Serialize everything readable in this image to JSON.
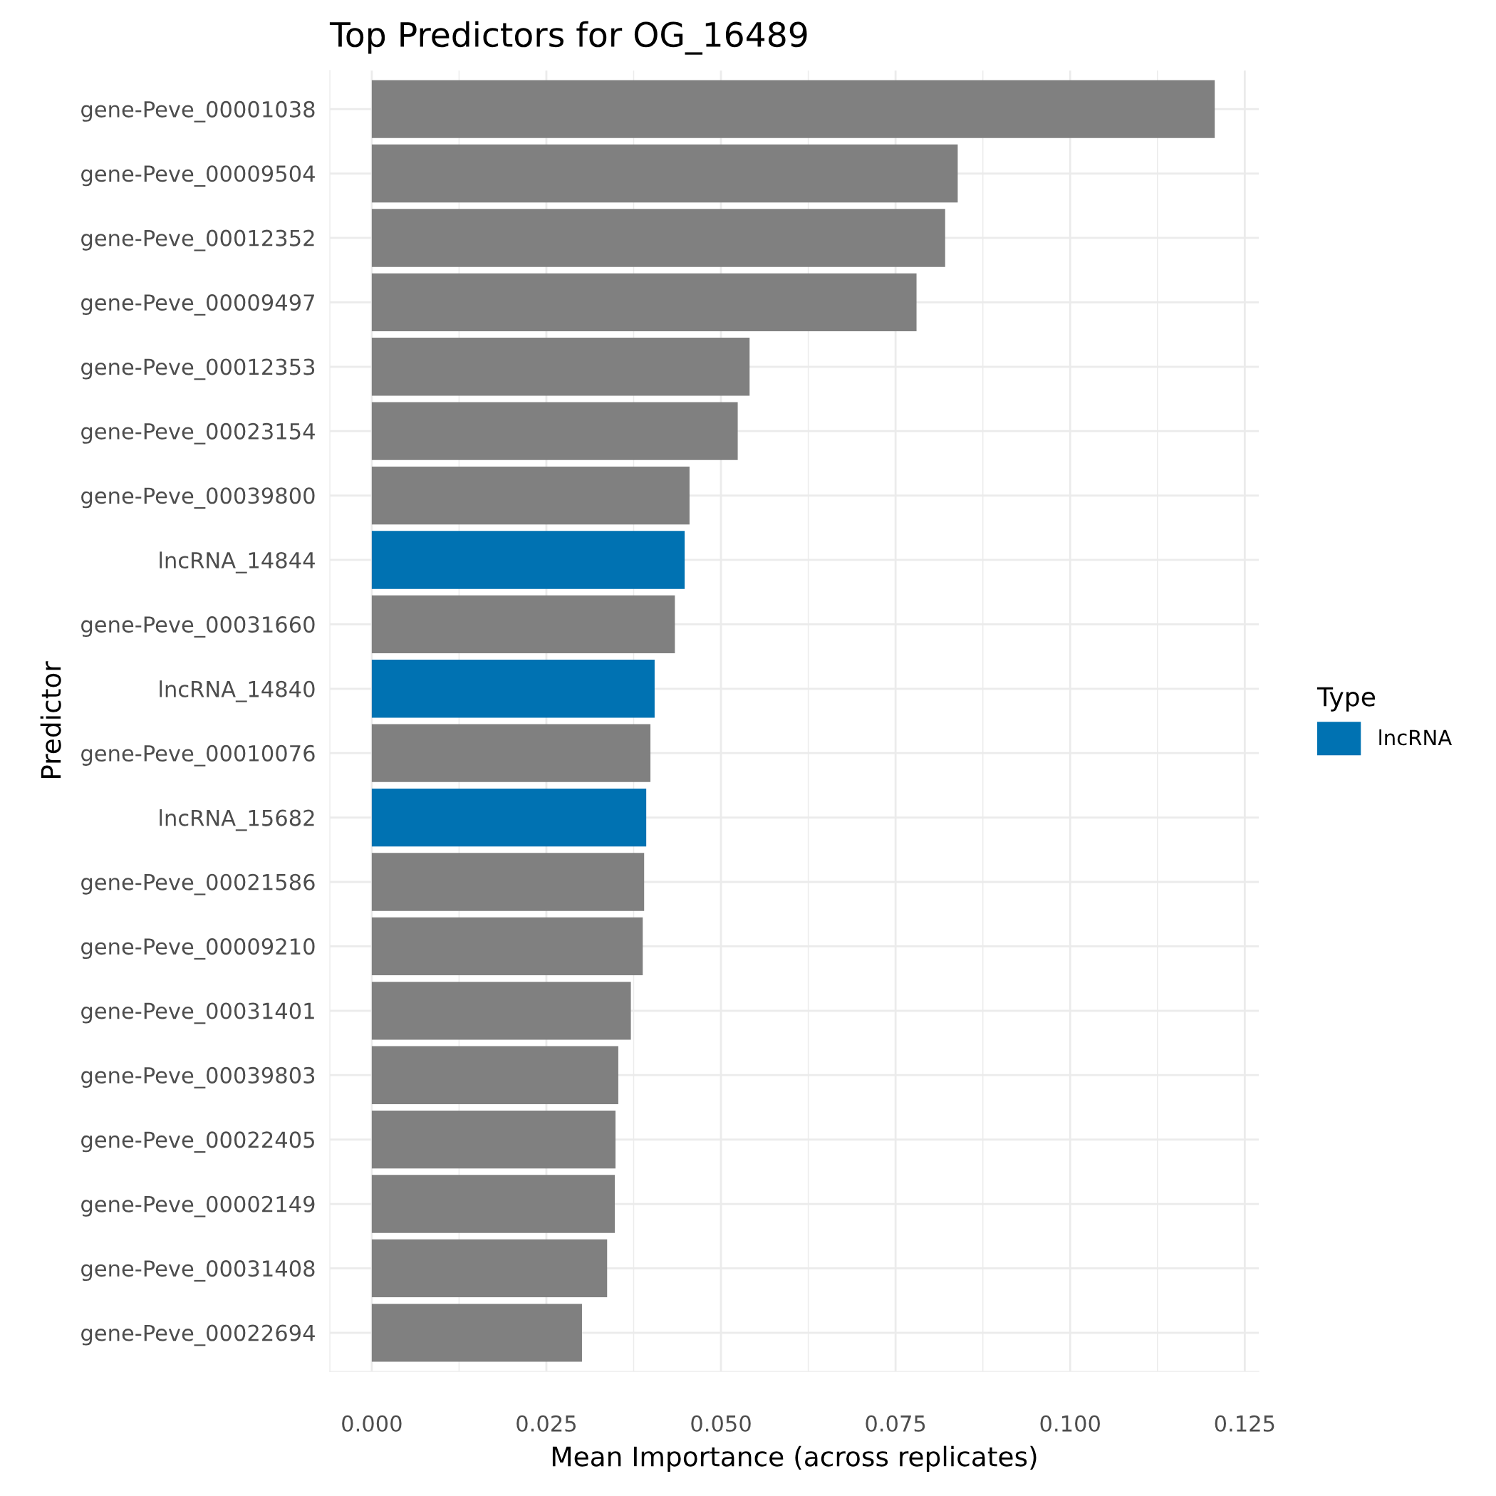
{
  "chart_data": {
    "type": "bar",
    "orientation": "horizontal",
    "title": "Top Predictors for OG_16489",
    "xlabel": "Mean Importance (across replicates)",
    "ylabel": "Predictor",
    "legend_title": "Type",
    "legend": "right",
    "grid": true,
    "categories": [
      "gene-Peve_00001038",
      "gene-Peve_00009504",
      "gene-Peve_00012352",
      "gene-Peve_00009497",
      "gene-Peve_00012353",
      "gene-Peve_00023154",
      "gene-Peve_00039800",
      "lncRNA_14844",
      "gene-Peve_00031660",
      "lncRNA_14840",
      "gene-Peve_00010076",
      "lncRNA_15682",
      "gene-Peve_00021586",
      "gene-Peve_00009210",
      "gene-Peve_00031401",
      "gene-Peve_00039803",
      "gene-Peve_00022405",
      "gene-Peve_00002149",
      "gene-Peve_00031408",
      "gene-Peve_00022694"
    ],
    "series": [
      {
        "color": "#808080",
        "values": [
          0.1207,
          0.0839,
          0.0821,
          0.078,
          0.0541,
          0.0524,
          0.0455,
          null,
          0.0434,
          null,
          0.0399,
          null,
          0.039,
          0.0388,
          0.0371,
          0.0353,
          0.0349,
          0.0348,
          0.0337,
          0.0301
        ]
      },
      {
        "name": "lncRNA",
        "color": "#0072b2",
        "values": [
          null,
          null,
          null,
          null,
          null,
          null,
          null,
          0.0448,
          null,
          0.0405,
          null,
          0.0393,
          null,
          null,
          null,
          null,
          null,
          null,
          null,
          null
        ]
      }
    ],
    "xlim": [
      -0.006,
      0.127
    ],
    "xticks": [
      {
        "value": 0,
        "label": "0.000"
      },
      {
        "value": 0.0125,
        "label": null
      },
      {
        "value": 0.025,
        "label": "0.025"
      },
      {
        "value": 0.0375,
        "label": null
      },
      {
        "value": 0.05,
        "label": "0.050"
      },
      {
        "value": 0.0625,
        "label": null
      },
      {
        "value": 0.075,
        "label": "0.075"
      },
      {
        "value": 0.0875,
        "label": null
      },
      {
        "value": 0.1,
        "label": "0.100"
      },
      {
        "value": 0.1125,
        "label": null
      },
      {
        "value": 0.125,
        "label": "0.125"
      }
    ]
  }
}
